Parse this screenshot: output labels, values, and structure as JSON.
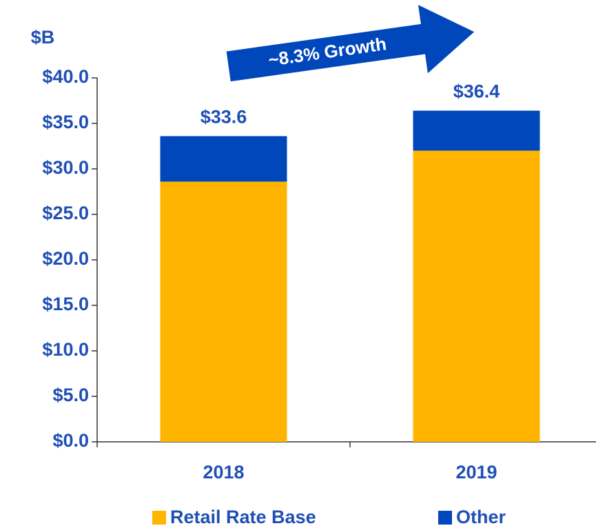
{
  "chart_data": {
    "type": "stacked_bar",
    "y_axis_title": "$B",
    "annotation": "~8.3% Growth",
    "categories": [
      "2018",
      "2019"
    ],
    "series": [
      {
        "name": "Retail Rate Base",
        "color": "#ffb500",
        "values": [
          28.6,
          32.0
        ]
      },
      {
        "name": "Other",
        "color": "#0047bb",
        "values": [
          5.0,
          4.4
        ]
      }
    ],
    "totals": [
      33.6,
      36.4
    ],
    "total_labels": [
      "$33.6",
      "$36.4"
    ],
    "ylim": [
      0,
      40
    ],
    "yticks": [
      {
        "value": 0,
        "label": "$0.0"
      },
      {
        "value": 5,
        "label": "$5.0"
      },
      {
        "value": 10,
        "label": "$10.0"
      },
      {
        "value": 15,
        "label": "$15.0"
      },
      {
        "value": 20,
        "label": "$20.0"
      },
      {
        "value": 25,
        "label": "$25.0"
      },
      {
        "value": 30,
        "label": "$30.0"
      },
      {
        "value": 35,
        "label": "$35.0"
      },
      {
        "value": 40,
        "label": "$40.0"
      }
    ],
    "grid": false,
    "legend": "bottom"
  }
}
